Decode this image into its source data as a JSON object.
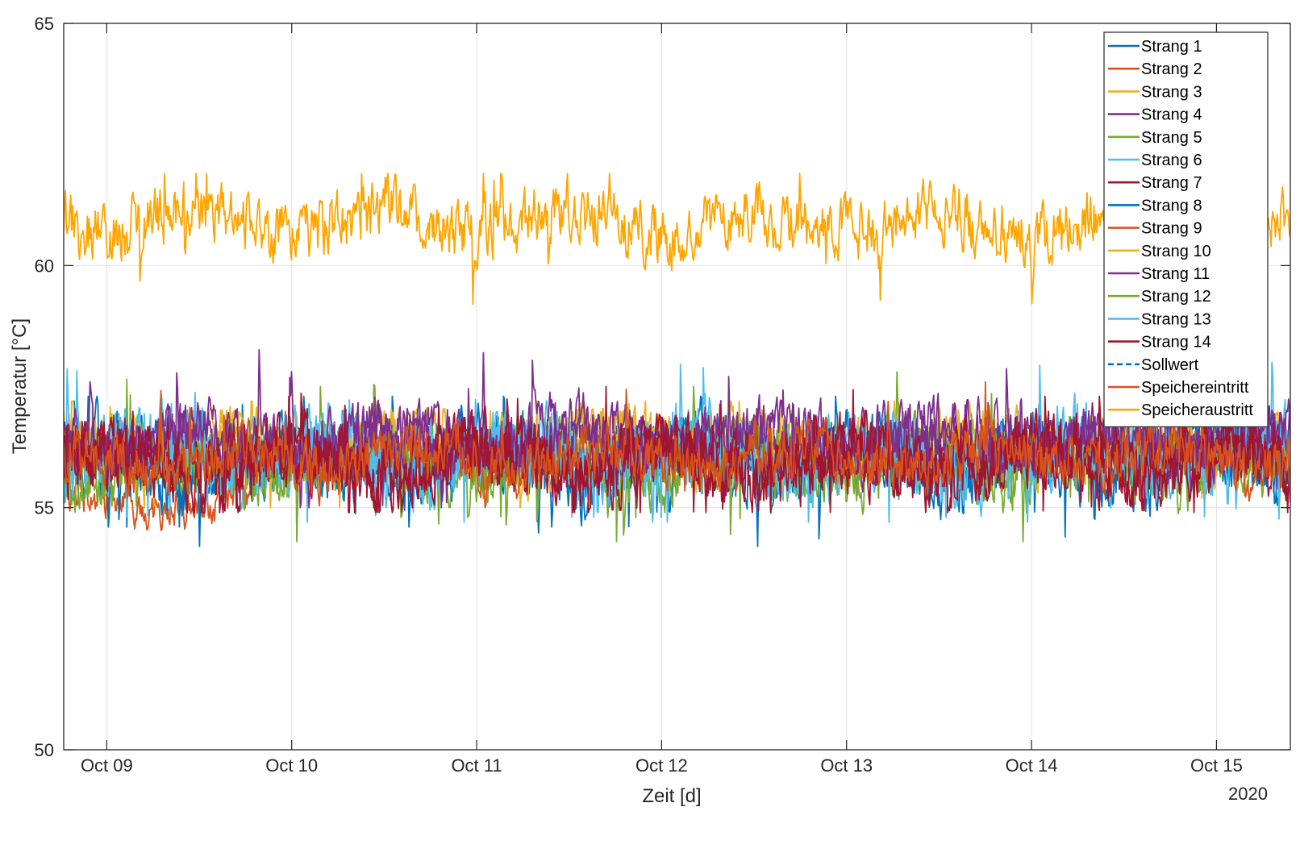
{
  "chart_data": {
    "type": "line",
    "xlabel": "Zeit [d]",
    "ylabel": "Temperatur [°C]",
    "year_label": "2020",
    "x_range": [
      "2020-10-08 18:25",
      "2020-10-15 09:35"
    ],
    "ylim": [
      50,
      65
    ],
    "x_ticks": [
      "2020-10-09",
      "2020-10-10",
      "2020-10-11",
      "2020-10-12",
      "2020-10-13",
      "2020-10-14",
      "2020-10-15"
    ],
    "x_tick_labels": [
      "Oct 09",
      "Oct 10",
      "Oct 11",
      "Oct 12",
      "Oct 13",
      "Oct 14",
      "Oct 15"
    ],
    "y_ticks": [
      50,
      55,
      60,
      65
    ],
    "grid": true,
    "legend_position": "top-right",
    "series": [
      {
        "name": "Strang 1",
        "color": "#0072BD",
        "style": "solid",
        "mean": 55.95,
        "noise": 0.55,
        "range": [
          54.2,
          57.3
        ]
      },
      {
        "name": "Strang 2",
        "color": "#D95319",
        "style": "solid",
        "mean": 55.15,
        "noise": 0.3,
        "range": [
          54.5,
          56.4
        ],
        "x_end": "2020-10-09 19:20"
      },
      {
        "name": "Strang 3",
        "color": "#EDB120",
        "style": "solid",
        "mean": 56.4,
        "noise": 0.4,
        "range": [
          54.8,
          57.2
        ]
      },
      {
        "name": "Strang 4",
        "color": "#7E2F8E",
        "style": "solid",
        "mean": 56.45,
        "noise": 0.45,
        "range": [
          55.0,
          58.5
        ]
      },
      {
        "name": "Strang 5",
        "color": "#77AC30",
        "style": "solid",
        "mean": 56.0,
        "noise": 0.55,
        "range": [
          54.3,
          57.8
        ]
      },
      {
        "name": "Strang 6",
        "color": "#4DBEEE",
        "style": "solid",
        "mean": 56.1,
        "noise": 0.55,
        "range": [
          54.7,
          58.0
        ]
      },
      {
        "name": "Strang 7",
        "color": "#A2142F",
        "style": "solid",
        "mean": 55.95,
        "noise": 0.5,
        "range": [
          54.9,
          57.5
        ]
      },
      {
        "name": "Strang 8",
        "color": "#0072BD",
        "style": "solid",
        "mean": 56.0,
        "noise": 0.45,
        "range": [
          54.6,
          57.0
        ]
      },
      {
        "name": "Strang 9",
        "color": "#D95319",
        "style": "solid",
        "mean": 56.0,
        "noise": 0.4,
        "range": [
          55.0,
          57.8
        ]
      },
      {
        "name": "Strang 10",
        "color": "#EDB120",
        "style": "solid",
        "mean": 56.2,
        "noise": 0.4,
        "range": [
          55.0,
          57.0
        ]
      },
      {
        "name": "Strang 11",
        "color": "#7E2F8E",
        "style": "solid",
        "mean": 56.35,
        "noise": 0.45,
        "range": [
          55.0,
          58.2
        ]
      },
      {
        "name": "Strang 12",
        "color": "#77AC30",
        "style": "solid",
        "mean": 56.0,
        "noise": 0.45,
        "range": [
          54.8,
          57.5
        ]
      },
      {
        "name": "Strang 13",
        "color": "#4DBEEE",
        "style": "solid",
        "mean": 56.1,
        "noise": 0.5,
        "range": [
          54.8,
          58.0
        ]
      },
      {
        "name": "Strang 14",
        "color": "#A2142F",
        "style": "solid",
        "mean": 55.95,
        "noise": 0.5,
        "range": [
          54.9,
          57.3
        ]
      },
      {
        "name": "Sollwert",
        "color": "#0072BD",
        "style": "dashed",
        "constant": 56
      },
      {
        "name": "Speichereintritt",
        "color": "#D95319",
        "style": "solid",
        "constant": 55
      },
      {
        "name": "Speicheraustritt",
        "color": "#FFA500",
        "style": "solid",
        "mean": 60.9,
        "noise": 0.45,
        "range": [
          59.2,
          61.9
        ]
      }
    ]
  }
}
